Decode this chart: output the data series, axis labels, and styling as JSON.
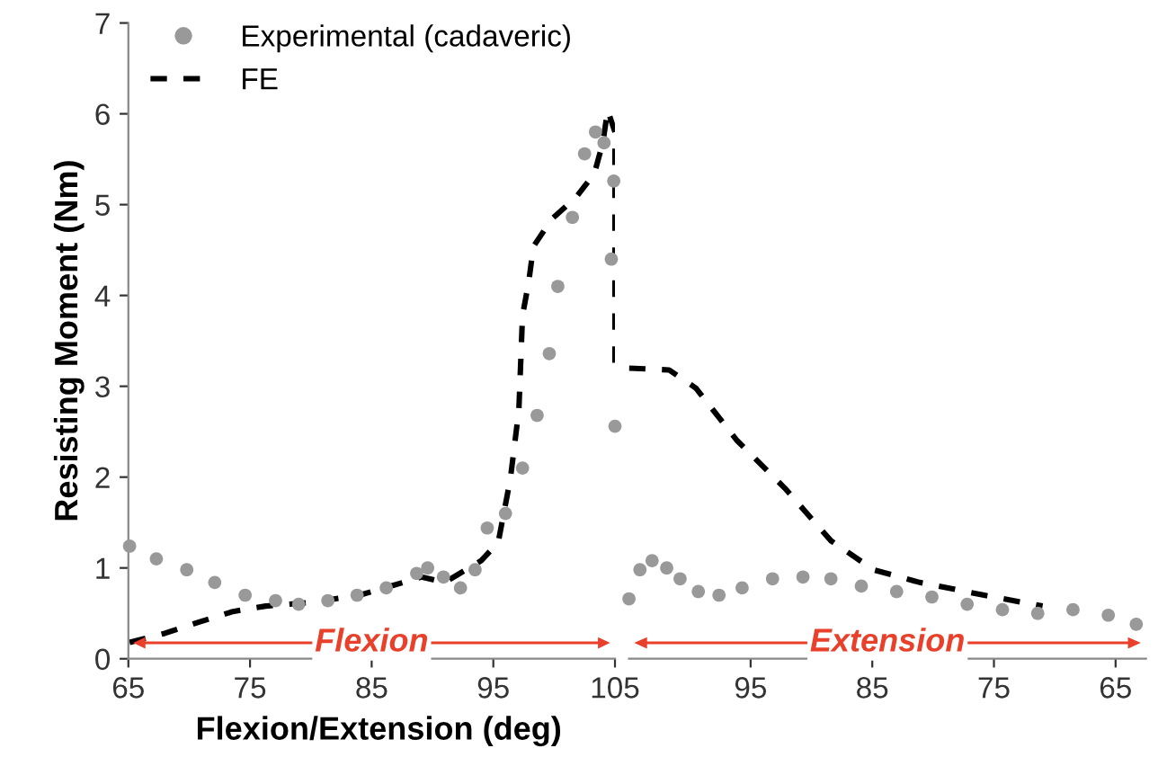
{
  "chart_data": [
    {
      "type": "line",
      "ylabel": "Resisting Moment (Nm)",
      "xlim": [
        65,
        105
      ],
      "ylim": [
        0,
        7
      ],
      "xticks": [
        65,
        75,
        85,
        95,
        105
      ],
      "yticks": [
        0,
        1,
        2,
        3,
        4,
        5,
        6,
        7
      ],
      "grid": false,
      "legend": "top left",
      "series": [
        {
          "name": "Experimental (cadaveric)",
          "type": "scatter",
          "marker": "circle",
          "color": "#999999",
          "x": [
            65.1,
            67.3,
            69.8,
            72.1,
            74.6,
            77.1,
            79,
            81.4,
            83.8,
            86.2,
            88.7,
            89.6,
            90.9,
            92.3,
            93.5,
            94.5,
            96,
            97.4,
            98.6,
            99.6,
            100.3,
            101.5,
            102.5,
            103.4,
            104.1,
            104.9,
            104.7,
            105
          ],
          "values": [
            1.24,
            1.1,
            0.98,
            0.84,
            0.7,
            0.64,
            0.6,
            0.64,
            0.7,
            0.78,
            0.94,
            1.0,
            0.9,
            0.78,
            0.98,
            1.44,
            1.6,
            2.1,
            2.68,
            3.36,
            4.1,
            4.86,
            5.56,
            5.8,
            5.68,
            5.26,
            4.4,
            2.56
          ]
        },
        {
          "name": "FE",
          "line_style": "dashed",
          "color": "#000000",
          "x": [
            65.1,
            68,
            70.7,
            73.6,
            76.3,
            80,
            84,
            89.1,
            91,
            94,
            95.4,
            96.4,
            97.1,
            97.4,
            97.9,
            98.3,
            99.8,
            101.8,
            103.3,
            104,
            104.4,
            105,
            105
          ],
          "values": [
            0.18,
            0.28,
            0.4,
            0.52,
            0.58,
            0.62,
            0.7,
            0.9,
            0.84,
            1.08,
            1.28,
            1.98,
            2.74,
            3.78,
            4.14,
            4.54,
            4.84,
            5.08,
            5.34,
            5.68,
            6.04,
            5.8,
            3.2
          ]
        }
      ],
      "annotations": [
        "Flexion"
      ]
    },
    {
      "type": "line",
      "xlabel": "Flexion/Extension (deg)",
      "xlim": [
        105,
        62.5
      ],
      "ylim": [
        0,
        7
      ],
      "xticks": [
        95,
        85,
        75,
        65
      ],
      "tick_labels": "x",
      "grid": false,
      "series": [
        {
          "type": "scatter",
          "marker": "circle",
          "color": "#999999",
          "x": [
            105,
            104.1,
            103.1,
            101.9,
            100.8,
            99.3,
            97.6,
            95.7,
            93.2,
            90.7,
            88.4,
            85.9,
            83,
            80.1,
            77.2,
            74.3,
            71.4,
            68.5,
            65.6,
            63.3
          ],
          "values": [
            0.66,
            0.98,
            1.08,
            1.0,
            0.88,
            0.74,
            0.7,
            0.78,
            0.88,
            0.9,
            0.88,
            0.8,
            0.74,
            0.68,
            0.6,
            0.54,
            0.5,
            0.54,
            0.48,
            0.38
          ]
        },
        {
          "line_style": "dashed",
          "color": "#000000",
          "x": [
            105,
            101.7,
            99.5,
            96.1,
            92.2,
            88.4,
            84.9,
            81.1,
            75.8,
            71
          ],
          "values": [
            3.2,
            3.18,
            2.98,
            2.4,
            1.88,
            1.3,
            0.98,
            0.84,
            0.7,
            0.58
          ]
        }
      ],
      "annotations": [
        "Extension"
      ]
    }
  ]
}
